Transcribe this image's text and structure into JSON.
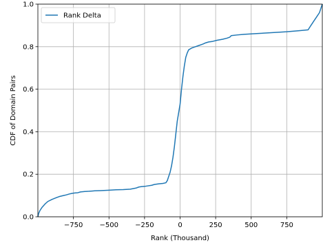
{
  "chart_data": {
    "type": "line",
    "title": "",
    "xlabel": "Rank (Thousand)",
    "ylabel": "CDF of Domain Pairs",
    "xlim": [
      -1000,
      1000
    ],
    "ylim": [
      0.0,
      1.0
    ],
    "xticks": [
      -750,
      -500,
      -250,
      0,
      250,
      500,
      750
    ],
    "xtick_labels": [
      "−750",
      "−500",
      "−250",
      "0",
      "250",
      "500",
      "750"
    ],
    "yticks": [
      0.0,
      0.2,
      0.4,
      0.6,
      0.8,
      1.0
    ],
    "ytick_labels": [
      "0.0",
      "0.2",
      "0.4",
      "0.6",
      "0.8",
      "1.0"
    ],
    "grid": true,
    "legend": {
      "position": "top-left",
      "entries": [
        "Rank Delta"
      ]
    },
    "series": [
      {
        "name": "Rank Delta",
        "color": "#1f77b4",
        "x": [
          -1000,
          -995,
          -985,
          -970,
          -950,
          -930,
          -900,
          -870,
          -850,
          -820,
          -800,
          -780,
          -760,
          -740,
          -720,
          -700,
          -670,
          -640,
          -620,
          -600,
          -560,
          -500,
          -450,
          -400,
          -350,
          -310,
          -290,
          -270,
          -250,
          -230,
          -200,
          -180,
          -150,
          -120,
          -100,
          -90,
          -80,
          -70,
          -60,
          -50,
          -40,
          -30,
          -20,
          -10,
          0,
          10,
          20,
          30,
          40,
          50,
          60,
          80,
          100,
          130,
          160,
          180,
          200,
          230,
          260,
          300,
          330,
          350,
          360,
          400,
          450,
          500,
          550,
          600,
          650,
          700,
          750,
          800,
          850,
          880,
          900,
          920,
          940,
          960,
          980,
          990,
          1000
        ],
        "y": [
          0.0,
          0.015,
          0.03,
          0.045,
          0.06,
          0.072,
          0.082,
          0.09,
          0.095,
          0.1,
          0.103,
          0.107,
          0.11,
          0.112,
          0.113,
          0.117,
          0.119,
          0.12,
          0.121,
          0.122,
          0.123,
          0.125,
          0.127,
          0.128,
          0.13,
          0.135,
          0.14,
          0.142,
          0.143,
          0.145,
          0.148,
          0.152,
          0.155,
          0.157,
          0.16,
          0.17,
          0.19,
          0.21,
          0.24,
          0.28,
          0.33,
          0.39,
          0.45,
          0.49,
          0.53,
          0.6,
          0.66,
          0.71,
          0.75,
          0.77,
          0.785,
          0.793,
          0.798,
          0.805,
          0.812,
          0.818,
          0.822,
          0.825,
          0.83,
          0.835,
          0.84,
          0.845,
          0.852,
          0.855,
          0.858,
          0.86,
          0.862,
          0.864,
          0.866,
          0.868,
          0.87,
          0.873,
          0.876,
          0.878,
          0.879,
          0.9,
          0.92,
          0.94,
          0.96,
          0.98,
          1.0
        ]
      }
    ]
  }
}
